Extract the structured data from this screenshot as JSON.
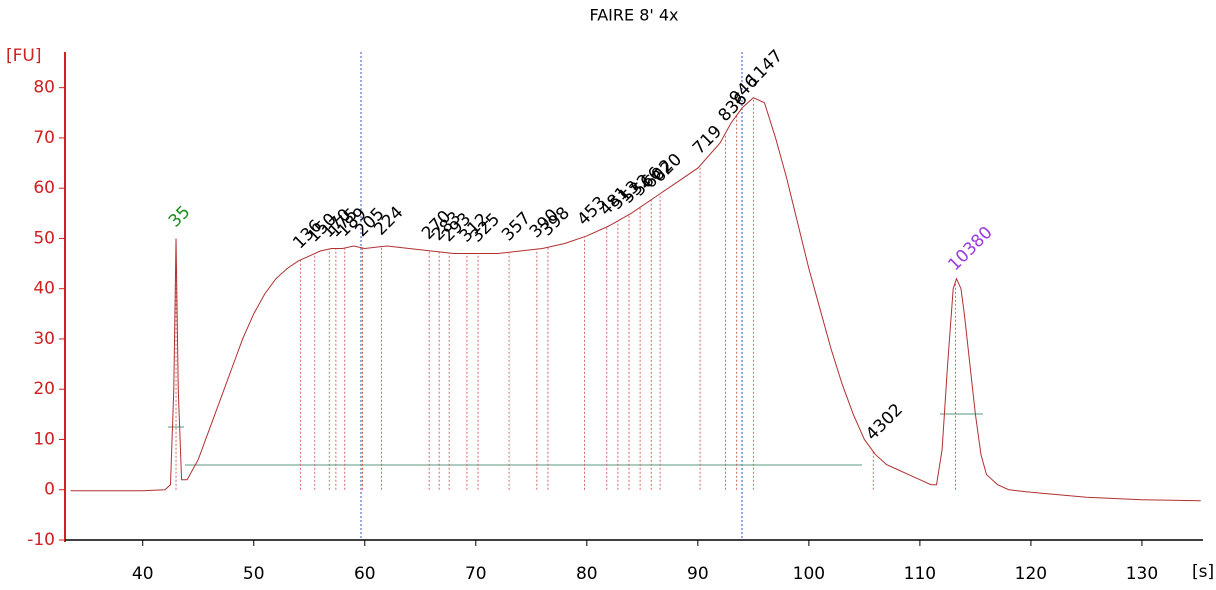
{
  "chart_data": {
    "type": "line",
    "title": "FAIRE 8' 4x",
    "y_label": "[FU]",
    "x_label": "[s]",
    "xlim": [
      33,
      135.5
    ],
    "ylim": [
      -10,
      86.5
    ],
    "xticks": [
      40,
      50,
      60,
      70,
      80,
      90,
      100,
      110,
      120,
      130
    ],
    "yticks": [
      -10,
      0,
      10,
      20,
      30,
      40,
      50,
      60,
      70,
      80
    ],
    "x": [
      33.5,
      40,
      42,
      42.5,
      42.8,
      43,
      43.2,
      43.5,
      44,
      45,
      46,
      47,
      48,
      49,
      50,
      51,
      52,
      53,
      54,
      55,
      56,
      57,
      58,
      59,
      60,
      62,
      64,
      66,
      68,
      70,
      72,
      74,
      76,
      78,
      80,
      82,
      84,
      86,
      88,
      90,
      92,
      93,
      94,
      95,
      96,
      97,
      98,
      99,
      100,
      101,
      102,
      103,
      104,
      105,
      106,
      107,
      108,
      109,
      110,
      111,
      111.5,
      112,
      112.5,
      113,
      113.3,
      113.7,
      114,
      114.5,
      115,
      115.5,
      116,
      117,
      118,
      120,
      125,
      130,
      135.3
    ],
    "series": [
      {
        "color": "#b03030",
        "values": [
          -0.2,
          -0.2,
          0,
          1,
          20,
          50,
          20,
          2,
          2,
          6,
          12,
          18,
          24,
          30,
          35,
          39,
          42,
          44,
          45.5,
          46.5,
          47.5,
          48,
          48,
          48.5,
          48,
          48.5,
          48,
          47.5,
          47,
          47,
          47,
          47.5,
          48,
          49,
          50.5,
          52.5,
          55,
          58,
          61,
          64,
          69,
          73,
          76,
          78,
          77,
          70,
          62,
          53,
          44,
          36,
          28,
          21,
          15,
          10,
          7,
          5,
          4,
          3,
          2,
          1,
          1,
          8,
          25,
          40,
          42,
          40,
          35,
          25,
          15,
          7,
          3,
          1,
          0,
          -0.5,
          -1.5,
          -2,
          -2.2
        ]
      }
    ],
    "peaks": [
      {
        "label": "35",
        "x": 43,
        "color": "#1a8a1a"
      },
      {
        "label": "136",
        "x": 54.2,
        "color": "#000000"
      },
      {
        "label": "150",
        "x": 55.5,
        "color": "#000000"
      },
      {
        "label": "170",
        "x": 56.8,
        "color": "#000000"
      },
      {
        "label": "175",
        "x": 57.4,
        "color": "#000000"
      },
      {
        "label": "189",
        "x": 58.2,
        "color": "#000000"
      },
      {
        "label": "205",
        "x": 59.8,
        "color": "#000000"
      },
      {
        "label": "224",
        "x": 61.5,
        "color": "#000000"
      },
      {
        "label": "270",
        "x": 65.8,
        "color": "#000000"
      },
      {
        "label": "283",
        "x": 66.7,
        "color": "#000000"
      },
      {
        "label": "293",
        "x": 67.6,
        "color": "#000000"
      },
      {
        "label": "312",
        "x": 69.2,
        "color": "#000000"
      },
      {
        "label": "325",
        "x": 70.2,
        "color": "#000000"
      },
      {
        "label": "357",
        "x": 73,
        "color": "#000000"
      },
      {
        "label": "390",
        "x": 75.5,
        "color": "#000000"
      },
      {
        "label": "398",
        "x": 76.5,
        "color": "#000000"
      },
      {
        "label": "453",
        "x": 79.8,
        "color": "#000000"
      },
      {
        "label": "481",
        "x": 81.8,
        "color": "#000000"
      },
      {
        "label": "513",
        "x": 82.8,
        "color": "#000000"
      },
      {
        "label": "532",
        "x": 83.8,
        "color": "#000000"
      },
      {
        "label": "566",
        "x": 84.8,
        "color": "#000000"
      },
      {
        "label": "602",
        "x": 85.8,
        "color": "#000000"
      },
      {
        "label": "620",
        "x": 86.6,
        "color": "#000000"
      },
      {
        "label": "719",
        "x": 90.2,
        "color": "#000000"
      },
      {
        "label": "836",
        "x": 92.5,
        "color": "#000000"
      },
      {
        "label": "946",
        "x": 93.5,
        "color": "#000000"
      },
      {
        "label": "1147",
        "x": 95,
        "color": "#000000"
      },
      {
        "label": "4302",
        "x": 105.8,
        "color": "#000000"
      },
      {
        "label": "10380",
        "x": 113.2,
        "color": "#9b3be0"
      }
    ]
  }
}
